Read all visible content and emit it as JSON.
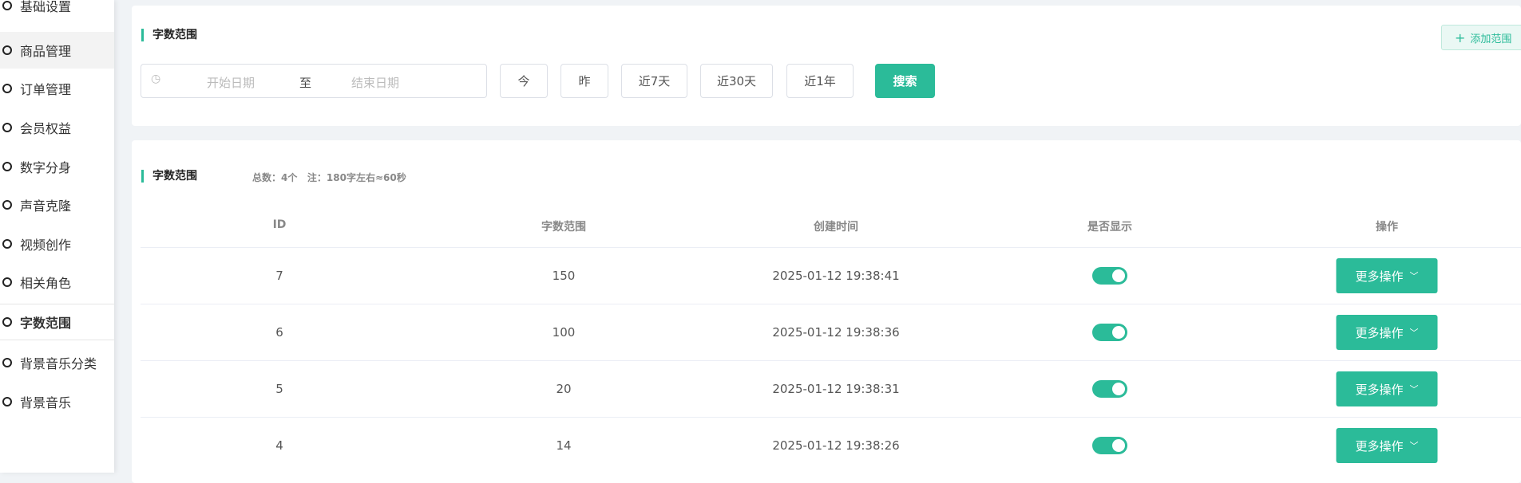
{
  "sidebar": {
    "items": [
      {
        "label": "基础设置"
      },
      {
        "label": "商品管理"
      },
      {
        "label": "订单管理"
      },
      {
        "label": "会员权益"
      },
      {
        "label": "数字分身"
      },
      {
        "label": "声音克隆"
      },
      {
        "label": "视频创作"
      },
      {
        "label": "相关角色"
      },
      {
        "label": "字数范围"
      },
      {
        "label": "背景音乐分类"
      },
      {
        "label": "背景音乐"
      }
    ],
    "active": "字数范围"
  },
  "filter": {
    "title": "字数范围",
    "start_placeholder": "开始日期",
    "separator": "至",
    "end_placeholder": "结束日期",
    "quick": [
      "今",
      "昨",
      "近7天",
      "近30天",
      "近1年"
    ],
    "search": "搜索",
    "add": "添加范围"
  },
  "list": {
    "title": "字数范围",
    "count": "总数：4个",
    "note": "注：180字左右≈60秒",
    "columns": [
      "ID",
      "字数范围",
      "创建时间",
      "是否显示",
      "操作"
    ],
    "rows": [
      {
        "id": "7",
        "range": "150",
        "created": "2025-01-12 19:38:41",
        "visible": true,
        "action": "更多操作"
      },
      {
        "id": "6",
        "range": "100",
        "created": "2025-01-12 19:38:36",
        "visible": true,
        "action": "更多操作"
      },
      {
        "id": "5",
        "range": "20",
        "created": "2025-01-12 19:38:31",
        "visible": true,
        "action": "更多操作"
      },
      {
        "id": "4",
        "range": "14",
        "created": "2025-01-12 19:38:26",
        "visible": true,
        "action": "更多操作"
      }
    ]
  },
  "colors": {
    "accent": "#2bbb99",
    "background": "#f0f3f6"
  }
}
